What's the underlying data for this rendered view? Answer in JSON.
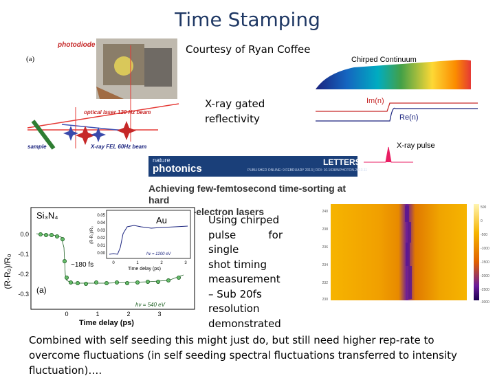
{
  "slide": {
    "title": "Time Stamping",
    "courtesy": "Courtesy of Ryan Coffee",
    "xray_gated": [
      "X-ray gated",
      "reflectivity"
    ],
    "chirped_note": [
      "Using chirped",
      "pulse for single",
      "shot timing",
      "measurement",
      "– Sub 20fs",
      "resolution",
      "demonstrated"
    ],
    "bottom_note": "Combined with self seeding this might just do, but still need higher rep-rate to overcome fluctuations (in self seeding spectral fluctuations transferred to intensity fluctuation)…."
  },
  "setup_figure": {
    "label_a": "(a)",
    "photodiode": "photodiode",
    "optical_laser": "optical laser 120 Hz beam",
    "sample": "sample",
    "xray_fel": "X-ray FEL 60Hz beam"
  },
  "spectrum_figure": {
    "chirped_continuum": "Chirped Continuum",
    "im_n": "Im(n)",
    "re_n": "Re(n)",
    "xray_pulse": "X-ray pulse"
  },
  "paper": {
    "journal_small": "nature",
    "journal": "photonics",
    "section": "LETTERS",
    "pub_line": "PUBLISHED ONLINE: 9 FEBRUARY 2013 | DOI: 10.1038/NPHOTON.2013.11",
    "title_line1": "Achieving few-femtosecond time-sorting at hard",
    "title_line2": "X-ray free-electron lasers"
  },
  "reflectivity_plot": {
    "material": "Si₃N₄",
    "ylabel": "(R-R₀)/R₀",
    "xlabel": "Time delay (ps)",
    "yticks": [
      "0.0",
      "-0.1",
      "-0.2",
      "-0.3"
    ],
    "xticks": [
      "0",
      "1",
      "2",
      "3"
    ],
    "drop_label": "~180 fs",
    "panel": "(a)",
    "energy": "hν = 540 eV",
    "inset": {
      "material": "Au",
      "ylabel": "(R-R₀)/R₀",
      "xlabel": "Time delay (ps)",
      "yticks": [
        "0.05",
        "0.04",
        "0.03",
        "0.02",
        "0.01",
        "0.00"
      ],
      "xticks": [
        "0",
        "1",
        "2",
        "3"
      ],
      "energy": "hν = 1200 eV"
    }
  },
  "heatmap": {
    "yticks": [
      "240",
      "238",
      "236",
      "234",
      "232",
      "230"
    ],
    "colorbar_ticks": [
      "500",
      "0",
      "-500",
      "-1000",
      "-1500",
      "-2000",
      "-2500",
      "-3000"
    ],
    "colors": {
      "high": "#f5b500",
      "mid": "#e07000",
      "low": "#6a1b9a",
      "deep": "#22005e"
    }
  }
}
